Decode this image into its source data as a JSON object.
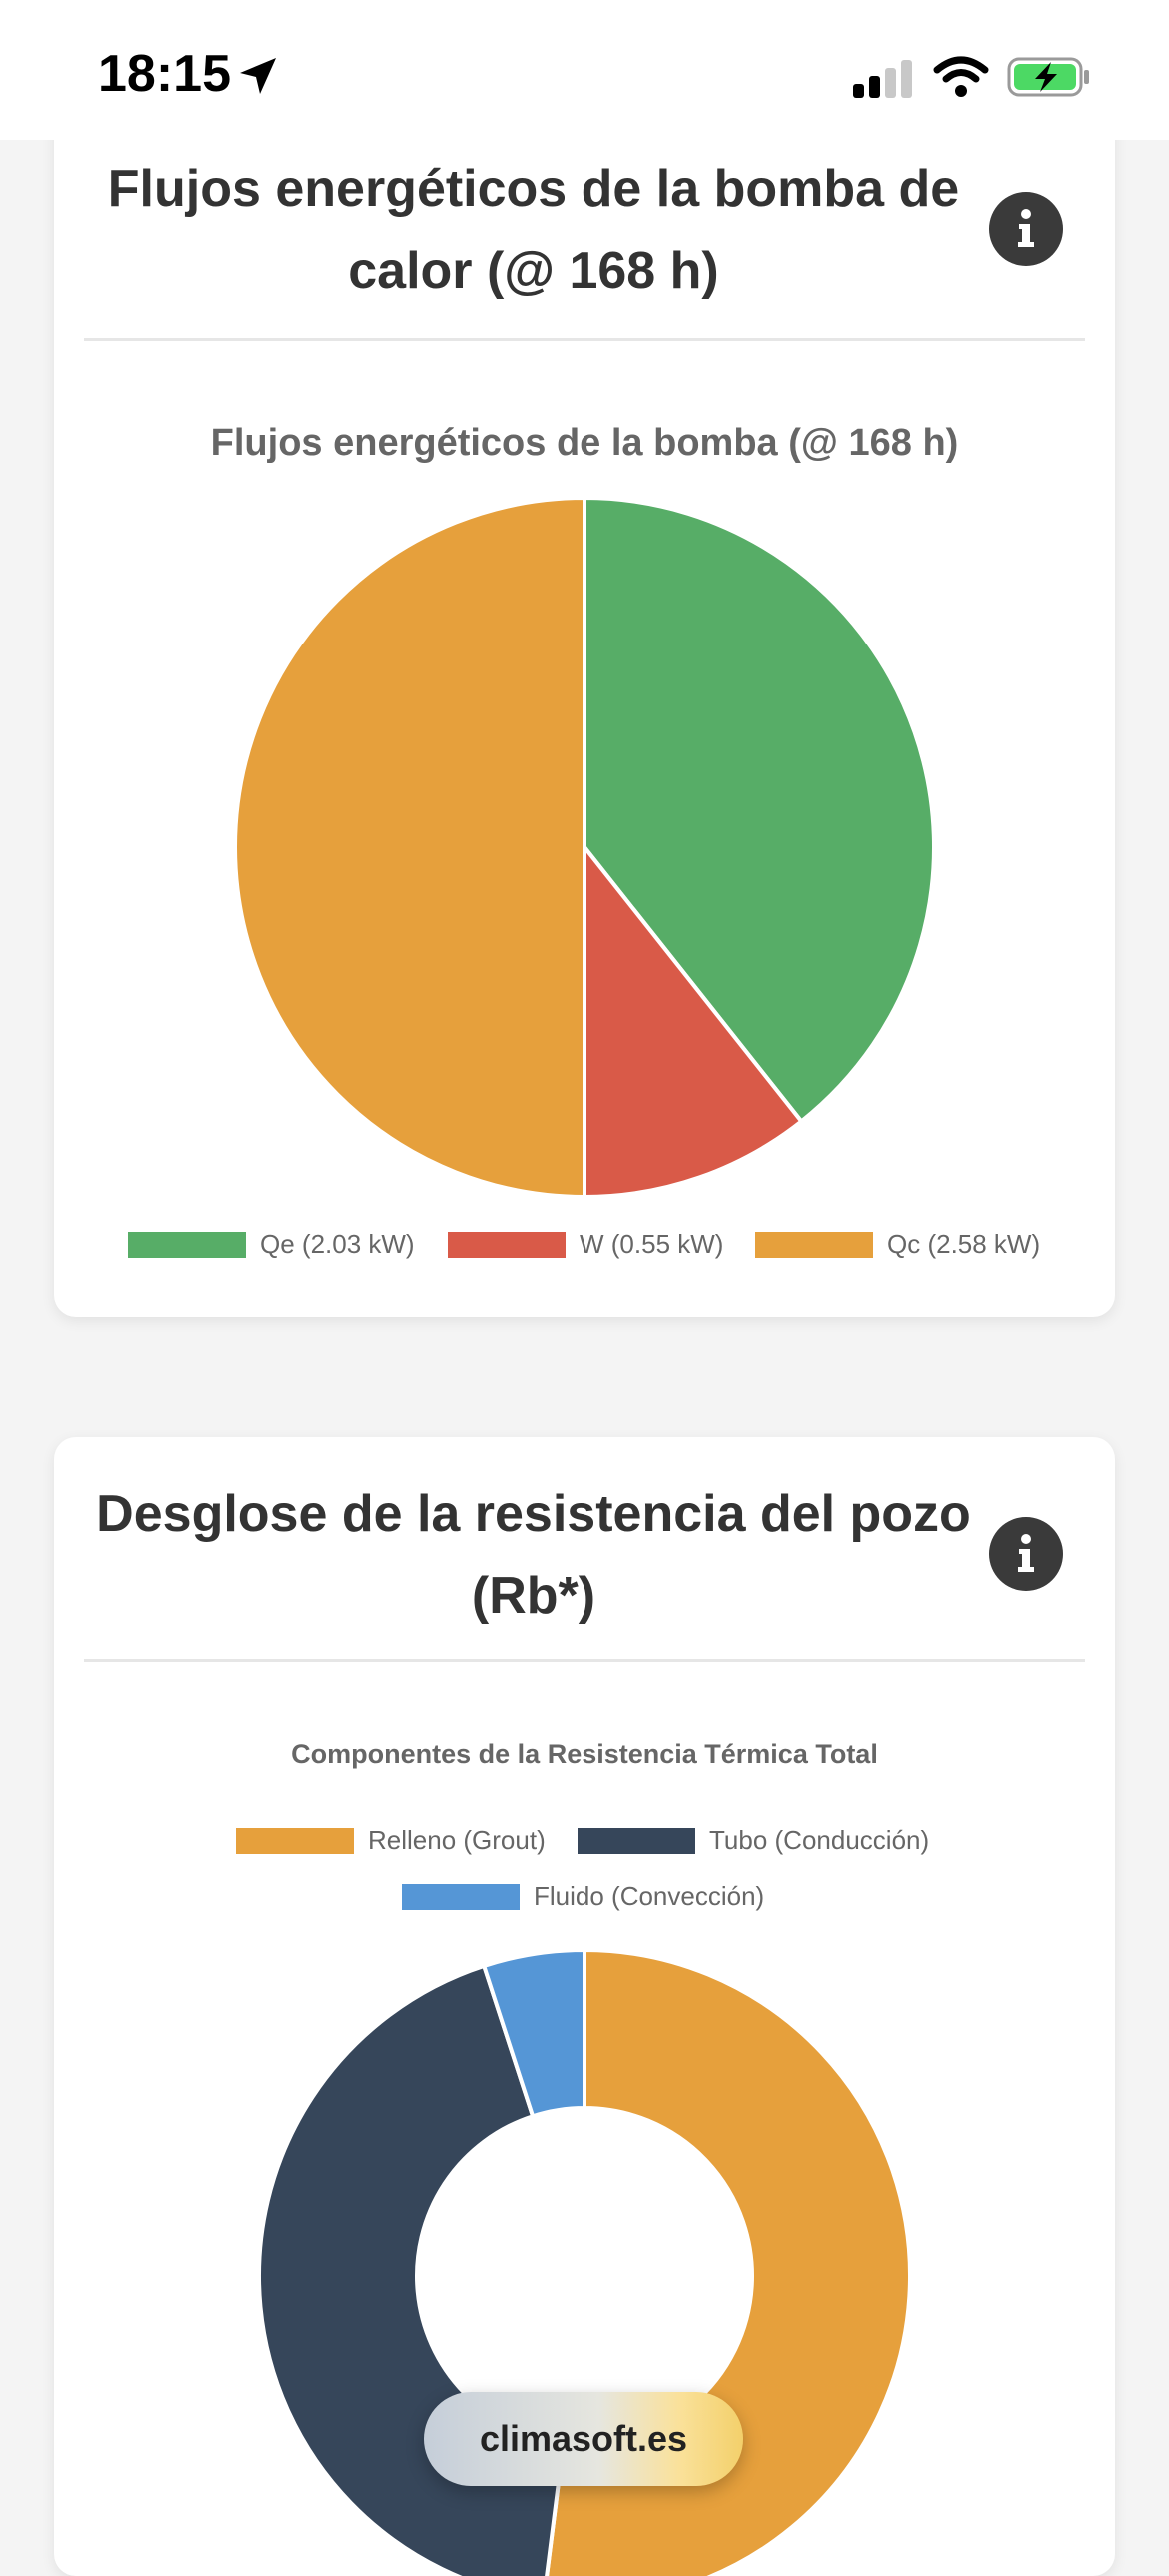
{
  "status_bar": {
    "time": "18:15"
  },
  "card1": {
    "title": "Flujos energéticos de la bomba de calor (@ 168 h)",
    "info_icon": "info-icon",
    "chart_data": {
      "type": "pie",
      "title": "Flujos energéticos de la bomba (@ 168 h)",
      "categories": [
        "Qe (2.03 kW)",
        "W (0.55 kW)",
        "Qc (2.58 kW)"
      ],
      "values": [
        2.03,
        0.55,
        2.58
      ],
      "colors": [
        "#57ad67",
        "#d95a48",
        "#e6a03c"
      ],
      "legend_position": "bottom"
    }
  },
  "card2": {
    "title": "Desglose de la resistencia del pozo (Rb*)",
    "info_icon": "info-icon",
    "chart_data": {
      "type": "pie",
      "subtype": "doughnut",
      "title": "Componentes de la Resistencia Térmica Total",
      "categories": [
        "Relleno (Grout)",
        "Tubo (Conducción)",
        "Fluido (Convección)"
      ],
      "values": [
        52,
        43,
        5
      ],
      "colors": [
        "#e6a03c",
        "#36465a",
        "#5596d6"
      ],
      "legend_position": "top"
    }
  },
  "watermark": "climasoft.es"
}
